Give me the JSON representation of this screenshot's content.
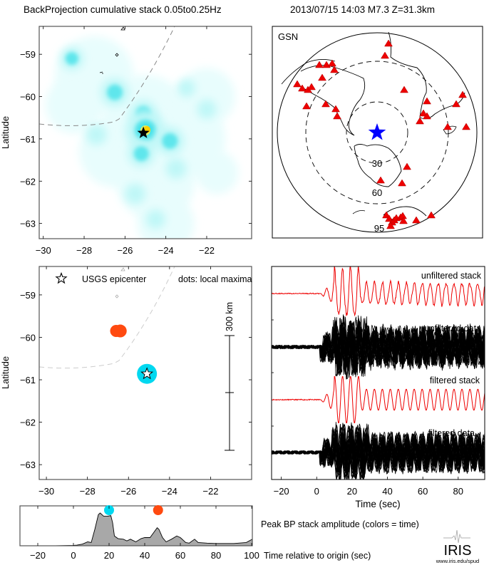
{
  "header": {
    "title": "BackProjection cumulative stack 0.05to0.25Hz",
    "event": "2013/07/15 14:03  M7.3  Z=31.3km"
  },
  "colors": {
    "red": "#ff0000",
    "blue": "#0000ff",
    "cyan": "#00d8f0",
    "orange": "#ff4a10",
    "fill_gray": "#a8a8a8"
  },
  "chart_data": [
    {
      "id": "bp-map",
      "type": "heatmap",
      "title": "",
      "ylabel": "Latitude",
      "xlabel": "",
      "xticks": [
        "-30",
        "-28",
        "-26",
        "-24",
        "-22"
      ],
      "yticks": [
        "-59",
        "-60",
        "-61",
        "-62",
        "-63"
      ],
      "xlim": [
        -30.2,
        -19.8
      ],
      "ylim": [
        -63.36,
        -58.34
      ],
      "epicenter": {
        "lon": -25.1,
        "lat": -60.86
      },
      "hotspots": [
        {
          "lon": -26.5,
          "lat": -59.9,
          "level": 0.55
        },
        {
          "lon": -25.1,
          "lat": -60.4,
          "level": 0.5
        },
        {
          "lon": -25.0,
          "lat": -60.8,
          "level": 1.0
        },
        {
          "lon": -23.8,
          "lat": -61.05,
          "level": 0.55
        },
        {
          "lon": -25.2,
          "lat": -61.35,
          "level": 0.5
        },
        {
          "lon": -28.6,
          "lat": -59.1,
          "level": 0.35
        },
        {
          "lon": -23.5,
          "lat": -61.7,
          "level": 0.25
        },
        {
          "lon": -22.0,
          "lat": -60.3,
          "level": 0.2
        },
        {
          "lon": -25.5,
          "lat": -62.3,
          "level": 0.25
        },
        {
          "lon": -24.5,
          "lat": -62.9,
          "level": 0.2
        },
        {
          "lon": -27.4,
          "lat": -60.9,
          "level": 0.25
        },
        {
          "lon": -23.0,
          "lat": -59.8,
          "level": 0.15
        }
      ]
    },
    {
      "id": "station-map",
      "type": "scatter",
      "title": "GSN",
      "ring_labels": [
        "30",
        "60",
        "95"
      ],
      "ring_degrees": [
        30,
        60,
        95
      ],
      "stations_note": "red triangles = GSN stations"
    },
    {
      "id": "maxima-map",
      "type": "scatter",
      "ylabel": "Latitude",
      "xticks": [
        "-30",
        "-28",
        "-26",
        "-24",
        "-22"
      ],
      "yticks": [
        "-59",
        "-60",
        "-61",
        "-62",
        "-63"
      ],
      "xlim": [
        -30.35,
        -20.0
      ],
      "ylim": [
        -63.35,
        -58.33
      ],
      "legend_star": "USGS epicenter",
      "legend_dots": "dots: local maxima",
      "scale_label": "300 km",
      "epicenter": {
        "lon": -25.1,
        "lat": -60.86
      },
      "maxima": [
        {
          "lon": -25.1,
          "lat": -60.86,
          "time": 20,
          "color": "#00d8f0",
          "size": 1.0
        },
        {
          "lon": -26.6,
          "lat": -59.85,
          "time": 47,
          "color": "#ff4a10",
          "size": 0.45
        },
        {
          "lon": -26.4,
          "lat": -59.85,
          "time": 48,
          "color": "#ff4a10",
          "size": 0.5
        }
      ]
    },
    {
      "id": "waveforms",
      "type": "line",
      "xlabel": "Time (sec)",
      "xticks": [
        "-20",
        "0",
        "20",
        "40",
        "60",
        "80"
      ],
      "xlim": [
        -25.5,
        95
      ],
      "traces": [
        {
          "name": "unfiltered stack",
          "color": "#ff0000"
        },
        {
          "name": "unfiltered data",
          "color": "#000000"
        },
        {
          "name": "filtered stack",
          "color": "#ff0000"
        },
        {
          "name": "filtered data",
          "color": "#000000"
        }
      ]
    },
    {
      "id": "peak-amplitude",
      "type": "area",
      "title": "Peak BP stack amplitude (colors = time)",
      "xlabel": "Time relative to origin (sec)",
      "xticks": [
        "-20",
        "0",
        "20",
        "40",
        "60",
        "80",
        "100"
      ],
      "xlim": [
        -30,
        100.4
      ],
      "ylim": [
        0,
        1
      ],
      "x": [
        -30,
        -10,
        0,
        2,
        5,
        8,
        10,
        12,
        14,
        15,
        17,
        19,
        21,
        22,
        23,
        25,
        28,
        30,
        32,
        35,
        38,
        40,
        43,
        45,
        47,
        48,
        50,
        52,
        55,
        58,
        60,
        63,
        65,
        68,
        70,
        75,
        80,
        90,
        97,
        100.4
      ],
      "y": [
        0,
        0,
        0.01,
        0.02,
        0.05,
        0.12,
        0.1,
        0.5,
        0.95,
        1.0,
        0.9,
        0.9,
        0.92,
        0.7,
        0.3,
        0.22,
        0.2,
        0.15,
        0.2,
        0.12,
        0.22,
        0.25,
        0.25,
        0.4,
        0.55,
        0.5,
        0.25,
        0.12,
        0.2,
        0.3,
        0.25,
        0.1,
        0.08,
        0.2,
        0.1,
        0.08,
        0.07,
        0.07,
        0.1,
        0.2
      ],
      "markers": [
        {
          "time": 20,
          "color": "#00d8f0"
        },
        {
          "time": 47.5,
          "color": "#ff4a10"
        }
      ]
    }
  ],
  "logo": {
    "text": "IRIS",
    "url_text": "www.iris.edu/spud"
  }
}
